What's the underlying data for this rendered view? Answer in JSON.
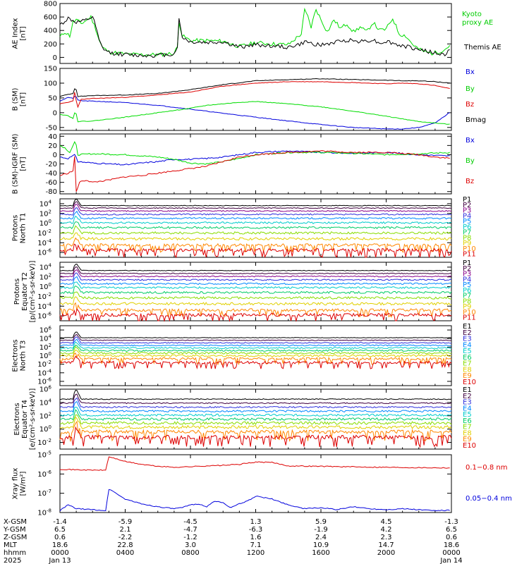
{
  "chart_data": [
    {
      "type": "line",
      "ylabel": [
        "AE Index",
        "[nT]"
      ],
      "ylim": [
        -90,
        800
      ],
      "yticks": [
        0,
        200,
        400,
        600,
        800
      ],
      "series": [
        {
          "name": "Kyoto proxy AE",
          "color": "#00dd00",
          "x": [
            0,
            0.3,
            0.6,
            0.8,
            1.0,
            1.3,
            1.6,
            1.9,
            2.0,
            2.2,
            2.4,
            2.6,
            3.0,
            4.0,
            5.0,
            6.0,
            7.0,
            7.25,
            7.3,
            7.5,
            8.0,
            9.0,
            10.0,
            11.0,
            12.0,
            13.0,
            14.0,
            14.8,
            15.0,
            15.2,
            15.4,
            15.7,
            16.0,
            16.4,
            16.8,
            17.2,
            17.6,
            18.0,
            18.4,
            18.8,
            19.2,
            19.6,
            20.0,
            20.4,
            20.8,
            21.2,
            21.6,
            22.0,
            22.4,
            22.8,
            23.2,
            23.6,
            24.0
          ],
          "values": [
            300,
            380,
            320,
            520,
            560,
            500,
            550,
            600,
            540,
            420,
            260,
            150,
            80,
            50,
            40,
            40,
            60,
            180,
            540,
            320,
            250,
            250,
            240,
            160,
            220,
            200,
            190,
            350,
            700,
            600,
            450,
            720,
            560,
            380,
            560,
            430,
            500,
            380,
            450,
            380,
            520,
            400,
            420,
            580,
            350,
            320,
            200,
            120,
            80,
            60,
            80,
            120,
            200
          ]
        },
        {
          "name": "Themis AE",
          "color": "#000000",
          "x": [
            0,
            0.5,
            1.0,
            1.5,
            2.0,
            2.2,
            2.4,
            2.6,
            3.0,
            4.0,
            5.0,
            6.0,
            7.0,
            7.25,
            7.3,
            7.5,
            8.0,
            9.0,
            10.0,
            11.0,
            12.0,
            13.0,
            14.0,
            14.8,
            15.0,
            15.4,
            16.0,
            16.8,
            17.6,
            18.4,
            19.2,
            19.6,
            20.0,
            20.8,
            21.6,
            22.4,
            23.0,
            23.6,
            24.0
          ],
          "values": [
            480,
            580,
            520,
            540,
            600,
            450,
            250,
            140,
            70,
            40,
            30,
            30,
            50,
            200,
            560,
            300,
            230,
            220,
            230,
            150,
            190,
            170,
            150,
            200,
            230,
            210,
            180,
            220,
            260,
            240,
            260,
            210,
            240,
            180,
            140,
            100,
            60,
            40,
            150
          ]
        }
      ]
    },
    {
      "type": "line",
      "ylabel": [
        "B (SM)",
        "[nT]"
      ],
      "ylim": [
        -60,
        150
      ],
      "yticks": [
        -50,
        0,
        50,
        100,
        150
      ],
      "series": [
        {
          "name": "Bx",
          "color": "#0000dd",
          "x": [
            0,
            0.5,
            0.8,
            0.95,
            1.1,
            1.5,
            2.5,
            4,
            6,
            8,
            10,
            12,
            14,
            16,
            18,
            20,
            21,
            22,
            23,
            24
          ],
          "values": [
            40,
            52,
            48,
            60,
            42,
            40,
            38,
            34,
            25,
            12,
            -2,
            -15,
            -28,
            -40,
            -50,
            -55,
            -55,
            -50,
            -35,
            5
          ]
        },
        {
          "name": "By",
          "color": "#00dd00",
          "x": [
            0,
            0.5,
            0.8,
            0.95,
            1.1,
            2,
            4,
            6,
            8,
            9,
            10,
            11,
            12,
            14,
            16,
            18,
            20,
            22,
            24
          ],
          "values": [
            -5,
            -10,
            -20,
            10,
            -30,
            -28,
            -15,
            0,
            15,
            25,
            30,
            35,
            38,
            30,
            20,
            5,
            -12,
            -30,
            -40
          ]
        },
        {
          "name": "Bz",
          "color": "#dd0000",
          "x": [
            0,
            0.5,
            0.8,
            0.95,
            1.0,
            1.1,
            1.3,
            2,
            4,
            6,
            8,
            10,
            12,
            14,
            16,
            18,
            20,
            21,
            22,
            23,
            24
          ],
          "values": [
            30,
            35,
            40,
            85,
            40,
            20,
            45,
            48,
            52,
            60,
            70,
            90,
            100,
            105,
            105,
            102,
            98,
            100,
            98,
            92,
            80
          ]
        },
        {
          "name": "Bmag",
          "color": "#000000",
          "x": [
            0,
            0.5,
            0.8,
            0.95,
            1.1,
            2,
            4,
            6,
            8,
            10,
            12,
            14,
            16,
            18,
            20,
            21,
            22,
            23,
            24
          ],
          "values": [
            55,
            62,
            65,
            90,
            55,
            58,
            60,
            65,
            78,
            95,
            108,
            112,
            115,
            112,
            110,
            108,
            108,
            105,
            100
          ]
        }
      ]
    },
    {
      "type": "line",
      "ylabel": [
        "B (SM)-IGRF (SM)",
        "[nT]"
      ],
      "ylim": [
        -85,
        45
      ],
      "yticks": [
        -80,
        -60,
        -40,
        -20,
        0,
        20,
        40
      ],
      "series": [
        {
          "name": "Bx",
          "color": "#0000dd",
          "x": [
            0,
            0.5,
            0.95,
            1.1,
            2,
            3,
            4,
            5,
            6,
            7,
            8,
            9,
            10,
            11,
            12,
            14,
            16,
            18,
            20,
            22,
            24
          ],
          "values": [
            -5,
            -8,
            0,
            -15,
            -18,
            -20,
            -22,
            -18,
            -15,
            -10,
            -10,
            -8,
            -5,
            0,
            5,
            8,
            5,
            3,
            5,
            0,
            -3
          ]
        },
        {
          "name": "By",
          "color": "#00dd00",
          "x": [
            0,
            0.3,
            0.6,
            0.95,
            1.1,
            2,
            4,
            6,
            7,
            8,
            9,
            10,
            11,
            12,
            14,
            16,
            18,
            20,
            22,
            24
          ],
          "values": [
            20,
            15,
            5,
            30,
            0,
            2,
            0,
            -5,
            -10,
            -18,
            -20,
            -15,
            -8,
            0,
            5,
            5,
            3,
            0,
            2,
            5
          ]
        },
        {
          "name": "Bz",
          "color": "#dd0000",
          "x": [
            0,
            0.5,
            0.8,
            0.95,
            1.0,
            1.2,
            1.6,
            2,
            3,
            4,
            5,
            6,
            7,
            8,
            9,
            10,
            11,
            12,
            14,
            16,
            18,
            20,
            22,
            23,
            24
          ],
          "values": [
            -45,
            -40,
            -35,
            10,
            -80,
            -60,
            -55,
            -60,
            -55,
            -48,
            -45,
            -40,
            -35,
            -30,
            -25,
            -15,
            -5,
            0,
            5,
            8,
            5,
            5,
            0,
            -5,
            -8
          ]
        }
      ]
    },
    {
      "type": "line",
      "log": true,
      "ylabel": [
        "Protons",
        "North T1"
      ],
      "ylim_exp": [
        -7,
        5
      ],
      "yticks_exp": [
        4,
        2,
        0,
        -2,
        -4,
        -6
      ],
      "series": [
        {
          "name": "P1",
          "color": "#000000",
          "level": 3.6
        },
        {
          "name": "P2",
          "color": "#400040",
          "level": 3.1
        },
        {
          "name": "P3",
          "color": "#8a008a",
          "level": 2.5
        },
        {
          "name": "P4",
          "color": "#3030dd",
          "level": 1.8
        },
        {
          "name": "P5",
          "color": "#0088ff",
          "level": 1.0
        },
        {
          "name": "P6",
          "color": "#00cccc",
          "level": 0.1
        },
        {
          "name": "P7",
          "color": "#00cc66",
          "level": -0.9
        },
        {
          "name": "P8",
          "color": "#88dd00",
          "level": -2.0
        },
        {
          "name": "P9",
          "color": "#e0d000",
          "level": -3.2
        },
        {
          "name": "P10",
          "color": "#ff8800",
          "level": -4.5
        },
        {
          "name": "P11",
          "color": "#dd0000",
          "level": -5.5
        }
      ]
    },
    {
      "type": "line",
      "log": true,
      "ylabel": [
        "Protons",
        "Equator T2",
        "[p/(cm²-s-sr-keV)]"
      ],
      "ylim_exp": [
        -7,
        5
      ],
      "yticks_exp": [
        4,
        2,
        0,
        -2,
        -4,
        -6
      ],
      "series": [
        {
          "name": "P1",
          "color": "#000000",
          "level": 3.3
        },
        {
          "name": "P2",
          "color": "#400040",
          "level": 2.7
        },
        {
          "name": "P3",
          "color": "#8a008a",
          "level": 2.1
        },
        {
          "name": "P4",
          "color": "#3030dd",
          "level": 1.4
        },
        {
          "name": "P5",
          "color": "#0088ff",
          "level": 0.6
        },
        {
          "name": "P6",
          "color": "#00cccc",
          "level": -0.2
        },
        {
          "name": "P7",
          "color": "#00cc66",
          "level": -1.2
        },
        {
          "name": "P8",
          "color": "#88dd00",
          "level": -2.3
        },
        {
          "name": "P9",
          "color": "#e0d000",
          "level": -3.5
        },
        {
          "name": "P10",
          "color": "#ff8800",
          "level": -4.8
        },
        {
          "name": "P11",
          "color": "#dd0000",
          "level": -5.8
        }
      ]
    },
    {
      "type": "line",
      "log": true,
      "ylabel": [
        "Electrons",
        "North T3"
      ],
      "ylim_exp": [
        -7,
        7
      ],
      "yticks_exp": [
        6,
        4,
        2,
        0,
        -2,
        -4,
        -6
      ],
      "series": [
        {
          "name": "E1",
          "color": "#000000",
          "level": 4.2
        },
        {
          "name": "E2",
          "color": "#400040",
          "level": 3.6
        },
        {
          "name": "E3",
          "color": "#3030dd",
          "level": 3.0
        },
        {
          "name": "E4",
          "color": "#0088ff",
          "level": 2.4
        },
        {
          "name": "E5",
          "color": "#00cccc",
          "level": 1.8
        },
        {
          "name": "E6",
          "color": "#00cc66",
          "level": 1.2
        },
        {
          "name": "E7",
          "color": "#88dd00",
          "level": 0.6
        },
        {
          "name": "E8",
          "color": "#e0d000",
          "level": 0.0
        },
        {
          "name": "E9",
          "color": "#ff8800",
          "level": -0.7
        },
        {
          "name": "E10",
          "color": "#dd0000",
          "level": -1.6
        }
      ]
    },
    {
      "type": "line",
      "log": true,
      "ylabel": [
        "Electrons",
        "Equator T4",
        "[e/(cm²-s-sr-keV)]"
      ],
      "ylim_exp": [
        -3,
        6
      ],
      "yticks_exp": [
        6,
        4,
        2,
        0,
        -2
      ],
      "series": [
        {
          "name": "E1",
          "color": "#000000",
          "level": 4.5
        },
        {
          "name": "E2",
          "color": "#400040",
          "level": 3.9
        },
        {
          "name": "E3",
          "color": "#3030dd",
          "level": 3.3
        },
        {
          "name": "E4",
          "color": "#0088ff",
          "level": 2.7
        },
        {
          "name": "E5",
          "color": "#00cccc",
          "level": 2.1
        },
        {
          "name": "E6",
          "color": "#00cc66",
          "level": 1.5
        },
        {
          "name": "E7",
          "color": "#88dd00",
          "level": 0.9
        },
        {
          "name": "E8",
          "color": "#e0d000",
          "level": 0.3
        },
        {
          "name": "E9",
          "color": "#ff8800",
          "level": -0.4
        },
        {
          "name": "E10",
          "color": "#dd0000",
          "level": -1.2
        }
      ]
    },
    {
      "type": "line",
      "log": true,
      "ylabel": [
        "Xray flux",
        "[W/m²]"
      ],
      "ylim_exp": [
        -8,
        -5
      ],
      "yticks_exp": [
        -5,
        -6,
        -7,
        -8
      ],
      "series": [
        {
          "name": "0.1-0.8 nm",
          "color": "#dd0000",
          "x": [
            0,
            1,
            2,
            2.8,
            3.0,
            3.2,
            4,
            5,
            6,
            7,
            8,
            9,
            10,
            11,
            12,
            13,
            14,
            16,
            18,
            20,
            22,
            24
          ],
          "values": [
            -5.75,
            -5.78,
            -5.8,
            -5.8,
            -5.1,
            -5.15,
            -5.35,
            -5.5,
            -5.6,
            -5.65,
            -5.62,
            -5.58,
            -5.55,
            -5.5,
            -5.38,
            -5.4,
            -5.58,
            -5.6,
            -5.63,
            -5.65,
            -5.67,
            -5.68
          ]
        },
        {
          "name": "0.05-0.4 nm",
          "color": "#0000dd",
          "x": [
            0,
            0.5,
            1,
            2,
            2.8,
            3.0,
            3.2,
            3.6,
            4,
            5,
            6,
            6.5,
            7,
            7.5,
            8,
            8.5,
            9,
            9.5,
            10,
            10.5,
            11,
            11.5,
            12,
            13,
            14,
            15,
            16,
            17,
            18,
            19,
            20,
            21,
            22,
            23,
            24
          ],
          "values": [
            -7.9,
            -7.6,
            -7.8,
            -7.85,
            -7.9,
            -6.8,
            -6.85,
            -7.1,
            -7.3,
            -7.55,
            -7.7,
            -7.75,
            -7.8,
            -7.75,
            -7.6,
            -7.55,
            -7.7,
            -7.4,
            -7.5,
            -7.75,
            -7.55,
            -7.4,
            -7.15,
            -7.3,
            -7.6,
            -7.8,
            -7.75,
            -7.85,
            -7.7,
            -7.8,
            -7.85,
            -7.8,
            -7.85,
            -7.9,
            -7.88
          ]
        }
      ]
    }
  ],
  "ephemeris": {
    "rows": [
      {
        "label": "X-GSM",
        "values": [
          "-1.4",
          "-5.9",
          "-4.5",
          "1.3",
          "5.9",
          "4.5",
          "-1.3"
        ]
      },
      {
        "label": "Y-GSM",
        "values": [
          "6.5",
          "2.1",
          "-4.7",
          "-6.3",
          "-1.9",
          "4.2",
          "6.5"
        ]
      },
      {
        "label": "Z-GSM",
        "values": [
          "0.6",
          "-2.2",
          "-1.2",
          "1.6",
          "2.4",
          "2.3",
          "0.6"
        ]
      },
      {
        "label": "MLT",
        "values": [
          "18.6",
          "22.8",
          "3.0",
          "7.1",
          "10.9",
          "14.7",
          "18.6"
        ]
      },
      {
        "label": "hhmm",
        "values": [
          "0000",
          "0400",
          "0800",
          "1200",
          "1600",
          "2000",
          "0000"
        ]
      },
      {
        "label": "2025",
        "values": [
          "Jan 13",
          "",
          "",
          "",
          "",
          "",
          "Jan 14"
        ]
      }
    ]
  },
  "legends": {
    "ae": [
      "Kyoto",
      "proxy AE",
      "Themis AE"
    ],
    "bsm": [
      "Bx",
      "By",
      "Bz",
      "Bmag"
    ],
    "bigrf": [
      "Bx",
      "By",
      "Bz"
    ],
    "xray": [
      "0.1−0.8 nm",
      "0.05−0.4 nm"
    ]
  }
}
